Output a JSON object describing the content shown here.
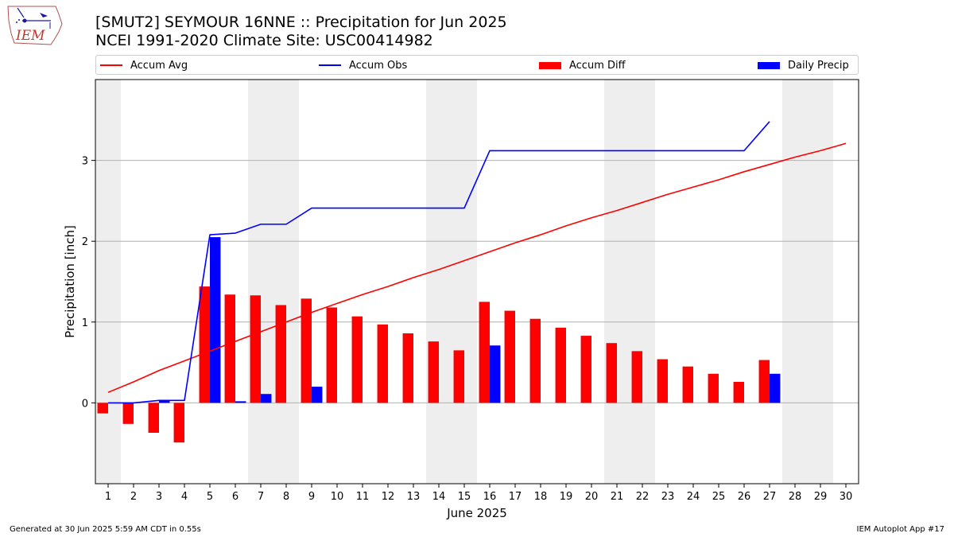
{
  "header": {
    "title_line1": "[SMUT2] SEYMOUR 16NNE :: Precipitation for Jun 2025",
    "title_line2": "NCEI 1991-2020 Climate Site: USC00414982",
    "logo_text": "IEM"
  },
  "footer": {
    "left": "Generated at 30 Jun 2025 5:59 AM CDT in 0.55s",
    "right": "IEM Autoplot App #17"
  },
  "colors": {
    "accum_avg": "#ff0000",
    "accum_obs": "#0000ff",
    "accum_diff": "#ff0000",
    "daily_precip": "#0000ff",
    "weekend_shade": "#eeeeee",
    "grid": "#b0b0b0"
  },
  "chart_data": {
    "type": "bar",
    "xlabel": "June 2025",
    "ylabel": "Precipitation [inch]",
    "xlim": [
      0.5,
      30.5
    ],
    "ylim": [
      -1,
      4
    ],
    "y_ticks": [
      0,
      1,
      2,
      3
    ],
    "x_ticks": [
      "1",
      "2",
      "3",
      "4",
      "5",
      "6",
      "7",
      "8",
      "9",
      "10",
      "11",
      "12",
      "13",
      "14",
      "15",
      "16",
      "17",
      "18",
      "19",
      "20",
      "21",
      "22",
      "23",
      "24",
      "25",
      "26",
      "27",
      "28",
      "29",
      "30"
    ],
    "grid": "horizontal",
    "legend_placement": "top",
    "legend": [
      "Accum Avg",
      "Accum Obs",
      "Accum Diff",
      "Daily Precip"
    ],
    "weekend_shading": [
      [
        0.5,
        1.5
      ],
      [
        6.5,
        8.5
      ],
      [
        13.5,
        15.5
      ],
      [
        20.5,
        22.5
      ],
      [
        27.5,
        29.5
      ]
    ],
    "days": [
      1,
      2,
      3,
      4,
      5,
      6,
      7,
      8,
      9,
      10,
      11,
      12,
      13,
      14,
      15,
      16,
      17,
      18,
      19,
      20,
      21,
      22,
      23,
      24,
      25,
      26,
      27,
      28,
      29,
      30
    ],
    "series": [
      {
        "name": "Accum Avg",
        "kind": "line",
        "values": [
          0.13,
          0.26,
          0.4,
          0.52,
          0.64,
          0.76,
          0.88,
          1.0,
          1.12,
          1.23,
          1.34,
          1.44,
          1.55,
          1.65,
          1.76,
          1.87,
          1.98,
          2.08,
          2.19,
          2.29,
          2.38,
          2.48,
          2.58,
          2.67,
          2.76,
          2.86,
          2.95,
          3.04,
          3.12,
          3.21
        ]
      },
      {
        "name": "Accum Obs",
        "kind": "line",
        "values": [
          0.0,
          0.0,
          0.03,
          0.03,
          2.08,
          2.1,
          2.21,
          2.21,
          2.41,
          2.41,
          2.41,
          2.41,
          2.41,
          2.41,
          2.41,
          3.12,
          3.12,
          3.12,
          3.12,
          3.12,
          3.12,
          3.12,
          3.12,
          3.12,
          3.12,
          3.12,
          3.48
        ]
      },
      {
        "name": "Accum Diff",
        "kind": "bar",
        "values": [
          -0.13,
          -0.26,
          -0.37,
          -0.49,
          1.44,
          1.34,
          1.33,
          1.21,
          1.29,
          1.18,
          1.07,
          0.97,
          0.86,
          0.76,
          0.65,
          1.25,
          1.14,
          1.04,
          0.93,
          0.83,
          0.74,
          0.64,
          0.54,
          0.45,
          0.36,
          0.26,
          0.53
        ]
      },
      {
        "name": "Daily Precip",
        "kind": "bar",
        "values": [
          0.0,
          0.0,
          0.03,
          0.0,
          2.05,
          0.02,
          0.11,
          0.0,
          0.2,
          0.0,
          0.0,
          0.0,
          0.0,
          0.0,
          0.0,
          0.71,
          0.0,
          0.0,
          0.0,
          0.0,
          0.0,
          0.0,
          0.0,
          0.0,
          0.0,
          0.0,
          0.36
        ]
      }
    ]
  }
}
